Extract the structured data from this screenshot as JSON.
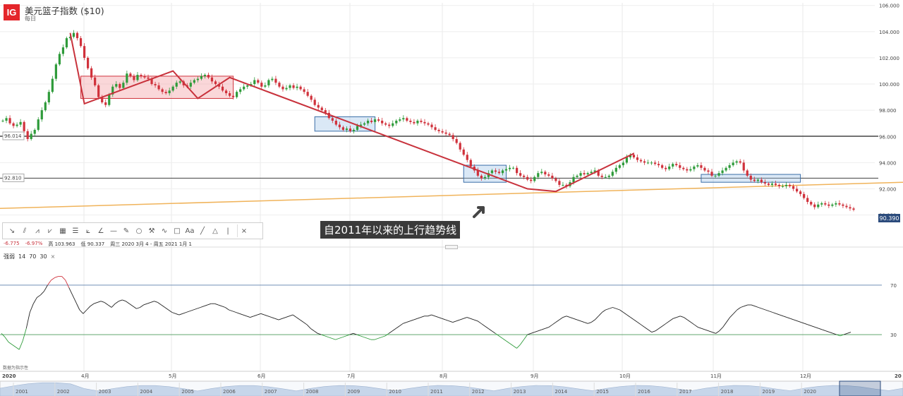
{
  "header": {
    "logo": "IG",
    "title": "美元篮子指数 ($10)",
    "subtitle": "每日"
  },
  "colors": {
    "up": "#2e9b3a",
    "down": "#d0313b",
    "brand": "#e4262b",
    "trend_red": "#c8323c",
    "trend_orange": "#f0b35a",
    "rsi_line": "#222222",
    "navigator_fill": "#c7d6ea"
  },
  "toolbar": {
    "icons": [
      "arrow-line-icon",
      "parallel-lines-icon",
      "multi-line-icon",
      "zigzag-icon",
      "grid-icon",
      "table-icon",
      "fib-fan-icon",
      "angle-icon",
      "horizontal-line-icon",
      "pencil-icon",
      "circle-icon",
      "tool-icon",
      "curve-icon",
      "rectangle-icon",
      "text-icon",
      "line-icon",
      "triangle-icon",
      "vertical-line-icon",
      "close-icon"
    ]
  },
  "stats": {
    "change": "-6.775",
    "change_pct": "-6.97%",
    "high": "高 103.963",
    "low": "低 90.337",
    "range": "周三 2020 3月 4 - 周五 2021 1月 1"
  },
  "rsi": {
    "label": "强弱",
    "params": [
      "14",
      "70",
      "30"
    ],
    "close_icon": "×"
  },
  "annotation": {
    "callout": "自2011年以来的上行趋势线"
  },
  "data_source": "数据为指示性",
  "navigator": {
    "start_label": "2020",
    "end_label": "20",
    "years": [
      "2001",
      "2002",
      "2003",
      "2004",
      "2005",
      "2006",
      "2007",
      "2008",
      "2009",
      "2010",
      "2011",
      "2012",
      "2013",
      "2014",
      "2015",
      "2016",
      "2017",
      "2018",
      "2019",
      "2020"
    ]
  },
  "chart_data": [
    {
      "type": "candlestick",
      "title": "美元篮子指数 ($10)",
      "interval": "每日",
      "y_axis_ticks": [
        "106.000",
        "104.000",
        "102.000",
        "100.000",
        "98.000",
        "96.000",
        "94.000",
        "92.000",
        "90.000"
      ],
      "ylim": [
        89.6,
        106.2
      ],
      "x_axis_ticks": [
        "2020",
        "4月",
        "5月",
        "6月",
        "7月",
        "8月",
        "9月",
        "10月",
        "11月",
        "12月",
        "20"
      ],
      "last_price": "90.390",
      "horizontal_levels": [
        {
          "value": 96.014,
          "label": "96.014"
        },
        {
          "value": 92.81,
          "label": "92.810"
        }
      ],
      "trendline_2011": {
        "start": 90.5,
        "end": 92.5
      },
      "close_series": [
        97.2,
        97.4,
        97.0,
        96.8,
        96.9,
        97.1,
        96.4,
        95.8,
        96.2,
        96.5,
        97.3,
        98.0,
        98.6,
        99.4,
        100.4,
        101.5,
        102.3,
        102.8,
        103.5,
        103.6,
        103.9,
        103.5,
        102.9,
        102.0,
        101.2,
        100.5,
        99.9,
        99.0,
        98.6,
        98.4,
        99.2,
        99.8,
        100.0,
        99.7,
        100.1,
        100.8,
        100.6,
        100.3,
        100.7,
        100.6,
        100.5,
        100.4,
        100.0,
        99.9,
        99.6,
        99.4,
        99.3,
        99.5,
        99.8,
        100.1,
        100.2,
        99.9,
        99.8,
        100.1,
        100.3,
        100.4,
        100.6,
        100.7,
        100.5,
        100.2,
        100.0,
        99.8,
        99.5,
        99.3,
        99.1,
        99.0,
        99.4,
        99.6,
        99.8,
        99.9,
        100.0,
        100.3,
        100.1,
        99.8,
        99.9,
        100.3,
        100.4,
        100.1,
        99.8,
        99.6,
        99.7,
        99.9,
        99.7,
        99.8,
        99.6,
        99.4,
        99.1,
        98.8,
        98.4,
        98.2,
        98.0,
        97.8,
        97.4,
        97.2,
        96.9,
        96.7,
        96.5,
        96.6,
        96.4,
        96.5,
        96.8,
        96.9,
        97.0,
        97.2,
        97.1,
        97.3,
        97.2,
        97.0,
        96.9,
        96.8,
        97.0,
        97.2,
        97.3,
        97.4,
        97.2,
        97.1,
        97.0,
        97.2,
        97.1,
        97.0,
        96.9,
        96.7,
        96.5,
        96.4,
        96.3,
        96.2,
        96.1,
        95.8,
        95.5,
        95.0,
        94.6,
        94.2,
        93.7,
        93.4,
        93.0,
        92.8,
        92.9,
        93.2,
        93.4,
        93.3,
        93.2,
        93.4,
        93.5,
        93.6,
        93.6,
        93.2,
        93.0,
        92.9,
        92.7,
        92.6,
        92.9,
        93.2,
        93.3,
        93.1,
        93.0,
        92.8,
        92.6,
        92.3,
        92.3,
        92.2,
        92.5,
        92.9,
        93.0,
        93.2,
        93.1,
        93.2,
        93.3,
        93.4,
        93.0,
        92.9,
        92.9,
        93.0,
        93.3,
        93.6,
        93.8,
        94.0,
        94.4,
        94.6,
        94.4,
        94.2,
        94.1,
        94.0,
        94.0,
        94.0,
        93.9,
        93.8,
        93.6,
        93.5,
        93.7,
        93.9,
        93.8,
        93.6,
        93.5,
        93.4,
        93.5,
        93.7,
        93.8,
        93.6,
        93.4,
        93.3,
        93.0,
        93.0,
        93.2,
        93.4,
        93.6,
        93.8,
        94.0,
        94.1,
        94.0,
        93.4,
        93.0,
        92.7,
        92.6,
        92.7,
        92.5,
        92.4,
        92.3,
        92.4,
        92.3,
        92.2,
        92.2,
        92.3,
        92.2,
        92.0,
        91.8,
        91.6,
        91.3,
        91.0,
        90.8,
        90.6,
        90.8,
        90.9,
        90.8,
        90.7,
        90.8,
        90.9,
        90.8,
        90.7,
        90.6,
        90.5,
        90.4
      ]
    },
    {
      "type": "line",
      "title": "强弱",
      "params": [
        14,
        70,
        30
      ],
      "levels": [
        70,
        30
      ],
      "level_labels": [
        "70",
        "30"
      ],
      "ylim": [
        5,
        95
      ],
      "values": [
        31,
        28,
        24,
        22,
        20,
        18,
        25,
        35,
        48,
        55,
        60,
        62,
        65,
        70,
        74,
        76,
        77,
        77,
        74,
        68,
        62,
        56,
        50,
        47,
        50,
        53,
        55,
        56,
        57,
        56,
        54,
        52,
        55,
        57,
        58,
        57,
        55,
        53,
        51,
        52,
        54,
        55,
        56,
        57,
        56,
        54,
        52,
        50,
        48,
        47,
        46,
        47,
        48,
        49,
        50,
        51,
        52,
        53,
        54,
        55,
        55,
        54,
        53,
        52,
        50,
        49,
        48,
        47,
        46,
        45,
        44,
        45,
        46,
        47,
        46,
        45,
        44,
        43,
        42,
        43,
        44,
        45,
        46,
        44,
        42,
        40,
        38,
        35,
        33,
        31,
        30,
        29,
        28,
        27,
        26,
        27,
        28,
        29,
        30,
        31,
        30,
        29,
        28,
        27,
        26,
        26,
        27,
        28,
        29,
        31,
        33,
        35,
        37,
        39,
        40,
        41,
        42,
        43,
        44,
        45,
        45,
        46,
        45,
        44,
        43,
        42,
        41,
        40,
        41,
        42,
        43,
        44,
        43,
        42,
        41,
        39,
        37,
        35,
        33,
        31,
        29,
        27,
        25,
        23,
        21,
        19,
        22,
        26,
        30,
        31,
        32,
        33,
        34,
        35,
        36,
        38,
        40,
        42,
        44,
        45,
        44,
        43,
        42,
        41,
        40,
        39,
        40,
        42,
        45,
        48,
        50,
        51,
        52,
        51,
        50,
        48,
        46,
        44,
        42,
        40,
        38,
        36,
        34,
        32,
        33,
        35,
        37,
        39,
        41,
        43,
        44,
        45,
        44,
        42,
        40,
        38,
        36,
        35,
        34,
        33,
        32,
        31,
        33,
        36,
        40,
        44,
        47,
        50,
        52,
        53,
        54,
        54,
        53,
        52,
        51,
        50,
        49,
        48,
        47,
        46,
        45,
        44,
        43,
        42,
        41,
        40,
        39,
        38,
        37,
        36,
        35,
        34,
        33,
        32,
        31,
        30,
        29,
        30,
        31,
        32
      ]
    }
  ]
}
